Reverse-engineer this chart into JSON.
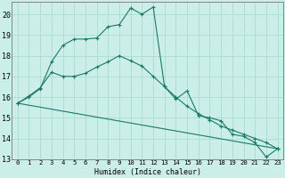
{
  "title": "",
  "xlabel": "Humidex (Indice chaleur)",
  "bg_color": "#cceee8",
  "grid_color": "#aaddcc",
  "line_color": "#1a7a6a",
  "xlim": [
    -0.5,
    23.5
  ],
  "ylim": [
    13,
    20.6
  ],
  "yticks": [
    13,
    14,
    15,
    16,
    17,
    18,
    19,
    20
  ],
  "xticks": [
    0,
    1,
    2,
    3,
    4,
    5,
    6,
    7,
    8,
    9,
    10,
    11,
    12,
    13,
    14,
    15,
    16,
    17,
    18,
    19,
    20,
    21,
    22,
    23
  ],
  "line1_x": [
    0,
    1,
    2,
    3,
    4,
    5,
    6,
    7,
    8,
    9,
    10,
    11,
    12,
    13,
    14,
    15,
    16,
    17,
    18,
    19,
    20,
    21,
    22,
    23
  ],
  "line1_y": [
    15.7,
    16.0,
    16.4,
    17.7,
    18.5,
    18.8,
    18.8,
    18.85,
    19.4,
    19.5,
    20.3,
    20.0,
    20.35,
    16.5,
    15.9,
    16.3,
    15.1,
    15.0,
    14.85,
    14.2,
    14.1,
    13.8,
    13.1,
    13.5
  ],
  "line2_x": [
    0,
    1,
    2,
    3,
    4,
    5,
    6,
    7,
    8,
    9,
    10,
    11,
    12,
    13,
    14,
    15,
    16,
    17,
    18,
    19,
    20,
    21,
    22,
    23
  ],
  "line2_y": [
    15.7,
    16.05,
    16.45,
    17.2,
    17.0,
    17.0,
    17.15,
    17.45,
    17.7,
    18.0,
    17.75,
    17.5,
    17.0,
    16.5,
    16.0,
    15.55,
    15.2,
    14.9,
    14.6,
    14.4,
    14.2,
    14.0,
    13.8,
    13.5
  ],
  "line3_x": [
    0,
    23
  ],
  "line3_y": [
    15.7,
    13.5
  ]
}
